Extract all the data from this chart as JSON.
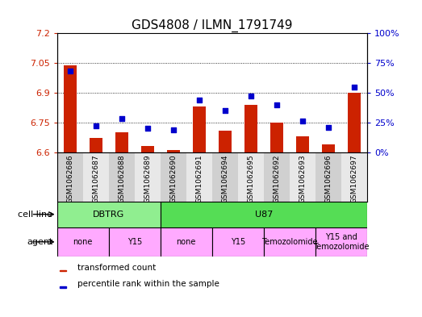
{
  "title": "GDS4808 / ILMN_1791749",
  "samples": [
    "GSM1062686",
    "GSM1062687",
    "GSM1062688",
    "GSM1062689",
    "GSM1062690",
    "GSM1062691",
    "GSM1062694",
    "GSM1062695",
    "GSM1062692",
    "GSM1062693",
    "GSM1062696",
    "GSM1062697"
  ],
  "transformed_count": [
    7.04,
    6.67,
    6.7,
    6.63,
    6.61,
    6.83,
    6.71,
    6.84,
    6.75,
    6.68,
    6.64,
    6.9
  ],
  "percentile_rank": [
    68,
    22,
    28,
    20,
    19,
    44,
    35,
    47,
    40,
    26,
    21,
    55
  ],
  "ylim_left": [
    6.6,
    7.2
  ],
  "ylim_right": [
    0,
    100
  ],
  "yticks_left": [
    6.6,
    6.75,
    6.9,
    7.05,
    7.2
  ],
  "yticks_right": [
    0,
    25,
    50,
    75,
    100
  ],
  "ytick_labels_right": [
    "0%",
    "25%",
    "50%",
    "75%",
    "100%"
  ],
  "bar_color": "#cc2200",
  "dot_color": "#0000cc",
  "bar_bottom": 6.6,
  "col_bg_even": "#d0d0d0",
  "col_bg_odd": "#e8e8e8",
  "cell_line_groups": [
    {
      "label": "DBTRG",
      "start": 0,
      "end": 3,
      "color": "#90ee90"
    },
    {
      "label": "U87",
      "start": 4,
      "end": 11,
      "color": "#55dd55"
    }
  ],
  "agent_groups": [
    {
      "label": "none",
      "start": 0,
      "end": 1,
      "color": "#ffaaff"
    },
    {
      "label": "Y15",
      "start": 2,
      "end": 3,
      "color": "#ffaaff"
    },
    {
      "label": "none",
      "start": 4,
      "end": 5,
      "color": "#ffaaff"
    },
    {
      "label": "Y15",
      "start": 6,
      "end": 7,
      "color": "#ffaaff"
    },
    {
      "label": "Temozolomide",
      "start": 8,
      "end": 9,
      "color": "#ffaaff"
    },
    {
      "label": "Y15 and\nTemozolomide",
      "start": 10,
      "end": 11,
      "color": "#ffaaff"
    }
  ],
  "legend_bar_label": "transformed count",
  "legend_dot_label": "percentile rank within the sample",
  "bg_color": "#ffffff",
  "plot_bg_color": "#ffffff",
  "left_tick_color": "#cc2200",
  "right_tick_color": "#0000cc",
  "title_fontsize": 11,
  "tick_fontsize": 8,
  "label_fontsize": 8
}
